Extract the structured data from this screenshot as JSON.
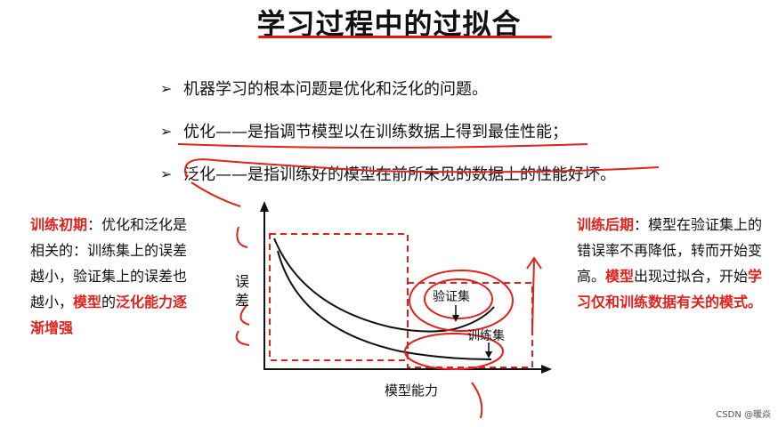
{
  "title": "学习过程中的过拟合",
  "bullets": [
    "机器学习的根本问题是优化和泛化的问题。",
    "优化——是指调节模型以在训练数据上得到最佳性能；",
    "泛化——是指训练好的模型在前所未见的数据上的性能好坏。"
  ],
  "left_note": {
    "head": "训练初期",
    "body": "：优化和泛化是相关的：训练集上的误差越小，验证集上的误差也越小，",
    "tail_red1": "模型",
    "tail_plain": "的",
    "tail_red2": "泛化能力逐渐增强"
  },
  "right_note": {
    "head": "训练后期",
    "body": "：模型在验证集上的错误率不再降低，转而开始变高。",
    "red1": "模型",
    "mid": "出现过拟合，开始",
    "red2": "学习仅和训练数据有关的模式。"
  },
  "diagram": {
    "ylabel_1": "误",
    "ylabel_2": "差",
    "xlabel": "模型能力",
    "val_label": "验证集",
    "train_label": "训练集"
  },
  "watermark": "CSDN @暖焱",
  "colors": {
    "accent": "#e0211c",
    "text": "#111111"
  }
}
